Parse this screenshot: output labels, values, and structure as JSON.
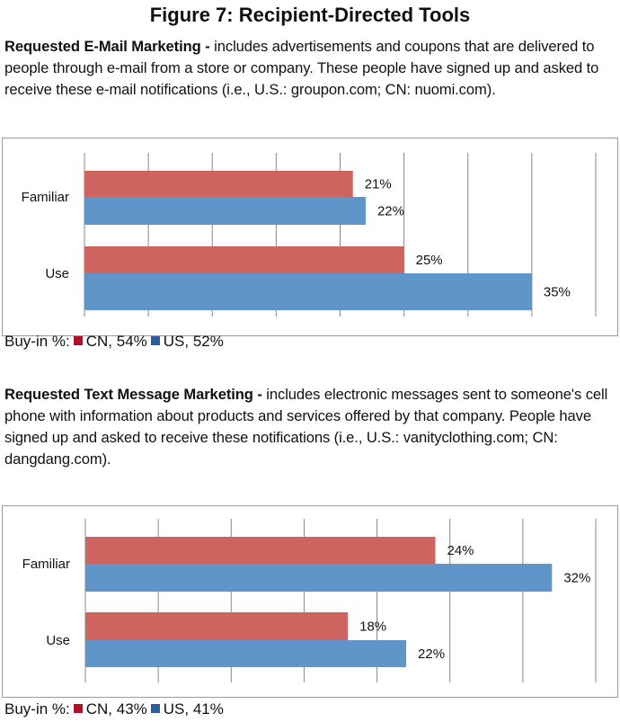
{
  "title": "Figure 7: Recipient-Directed Tools",
  "colors": {
    "cn": "#cd6460",
    "us": "#5f95c9",
    "cn_legend": "#b0102a",
    "us_legend": "#2f5f9a",
    "grid": "#888888"
  },
  "sections": [
    {
      "heading": "Requested E-Mail Marketing -",
      "description": " includes advertisements and coupons that are delivered to people through e-mail from a store or company. These people have signed up and asked to receive these e-mail notifications (i.e., U.S.: groupon.com; CN: nuomi.com).",
      "legend_prefix": "Buy-in %:",
      "legend_cn": "CN, 54%",
      "legend_us": "US, 52%"
    },
    {
      "heading": "Requested Text Message Marketing -",
      "description": " includes electronic messages sent to someone's cell phone with information about products and services offered by that company. People have signed up and asked to receive these notifications (i.e., U.S.: vanityclothing.com; CN: dangdang.com).",
      "legend_prefix": "Buy-in %:",
      "legend_cn": "CN, 43%",
      "legend_us": "US, 41%"
    }
  ],
  "chart_data": [
    {
      "type": "bar",
      "orientation": "horizontal",
      "categories": [
        "Familiar",
        "Use"
      ],
      "series": [
        {
          "name": "CN",
          "values": [
            21,
            25
          ],
          "labels": [
            "21%",
            "25%"
          ]
        },
        {
          "name": "US",
          "values": [
            22,
            35
          ],
          "labels": [
            "22%",
            "35%"
          ]
        }
      ],
      "xlim": [
        0,
        40
      ],
      "grid_step": 5,
      "grid": true,
      "legend": "bottom-left"
    },
    {
      "type": "bar",
      "orientation": "horizontal",
      "categories": [
        "Familiar",
        "Use"
      ],
      "series": [
        {
          "name": "CN",
          "values": [
            24,
            18
          ],
          "labels": [
            "24%",
            "18%"
          ]
        },
        {
          "name": "US",
          "values": [
            32,
            22
          ],
          "labels": [
            "32%",
            "22%"
          ]
        }
      ],
      "xlim": [
        0,
        35
      ],
      "grid_step": 5,
      "grid": true,
      "legend": "bottom-left"
    }
  ]
}
